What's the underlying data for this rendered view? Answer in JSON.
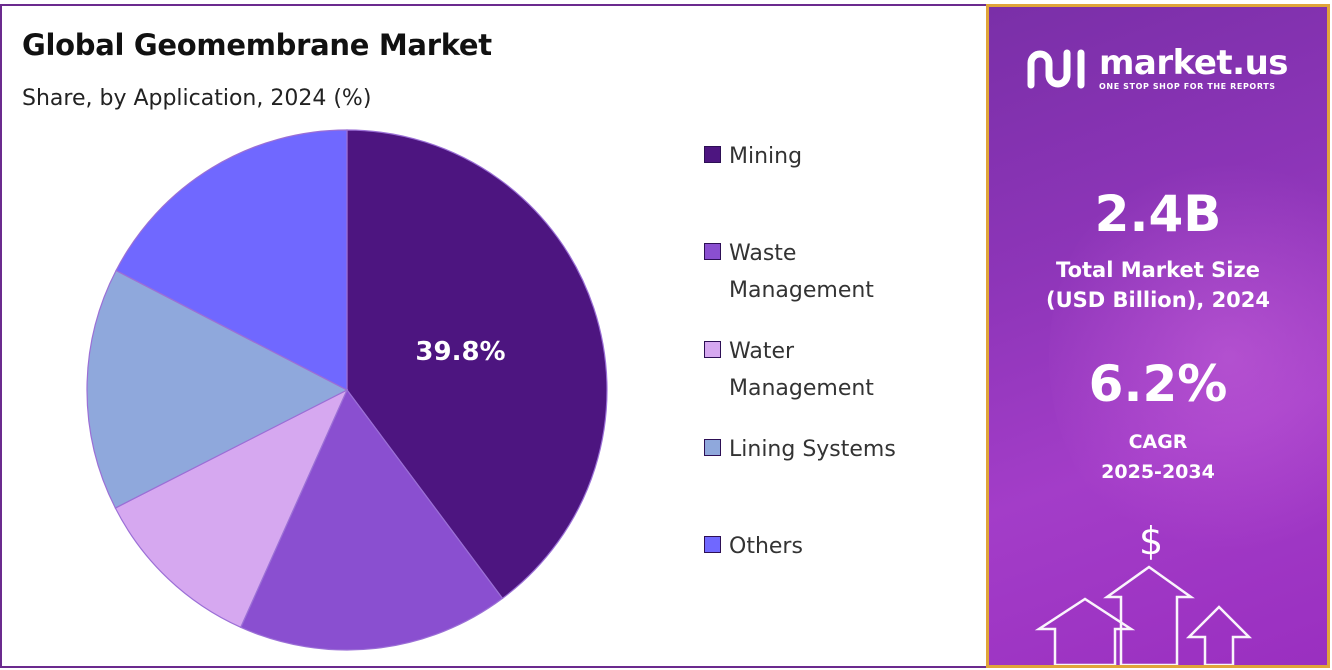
{
  "chart_data": {
    "type": "pie",
    "title": "Global Geomembrane Market",
    "subtitle": "Share, by Application, 2024 (%)",
    "categories": [
      "Mining",
      "Waste Management",
      "Water Management",
      "Lining Systems",
      "Others"
    ],
    "values": [
      39.8,
      16.9,
      10.8,
      15.1,
      17.4
    ],
    "data_labels": [
      "39.8%",
      "",
      "",
      "",
      ""
    ],
    "colors": [
      "#4d1580",
      "#8a4fd0",
      "#d6a8f0",
      "#8fa8dc",
      "#7068ff"
    ],
    "legend_position": "right",
    "start_angle_deg": 0,
    "direction": "clockwise"
  },
  "legend": {
    "items": [
      {
        "label": "Mining"
      },
      {
        "label": "Waste\nManagement"
      },
      {
        "label": "Water\nManagement"
      },
      {
        "label": "Lining Systems"
      },
      {
        "label": "Others"
      }
    ]
  },
  "side_panel": {
    "brand_name": "market.us",
    "brand_tagline": "ONE STOP SHOP FOR THE REPORTS",
    "market_size_value": "2.4B",
    "market_size_label_1": "Total Market Size",
    "market_size_label_2": "(USD Billion), 2024",
    "cagr_value": "6.2%",
    "cagr_label_1": "CAGR",
    "cagr_label_2": "2025-2034",
    "currency_symbol": "$",
    "accent_border": "#e0a43a"
  }
}
